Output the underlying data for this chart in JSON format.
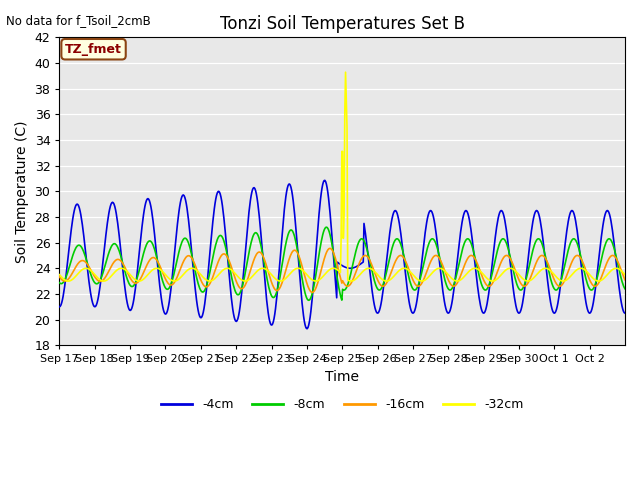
{
  "title": "Tonzi Soil Temperatures Set B",
  "xlabel": "Time",
  "ylabel": "Soil Temperature (C)",
  "no_data_label": "No data for f_Tsoil_2cmB",
  "tz_fmet_label": "TZ_fmet",
  "ylim": [
    18,
    42
  ],
  "yticks": [
    18,
    20,
    22,
    24,
    26,
    28,
    30,
    32,
    34,
    36,
    38,
    40,
    42
  ],
  "xtick_labels": [
    "Sep 17",
    "Sep 18",
    "Sep 19",
    "Sep 20",
    "Sep 21",
    "Sep 22",
    "Sep 23",
    "Sep 24",
    "Sep 25",
    "Sep 26",
    "Sep 27",
    "Sep 28",
    "Sep 29",
    "Sep 30",
    "Oct 1",
    "Oct 2"
  ],
  "background_color": "#e8e8e8",
  "line_colors": {
    "4cm": "#0000dd",
    "8cm": "#00cc00",
    "16cm": "#ff9900",
    "32cm": "#ffff00"
  },
  "legend_labels": [
    "-4cm",
    "-8cm",
    "-16cm",
    "-32cm"
  ],
  "legend_colors": [
    "#0000dd",
    "#00cc00",
    "#ff9900",
    "#ffff00"
  ]
}
